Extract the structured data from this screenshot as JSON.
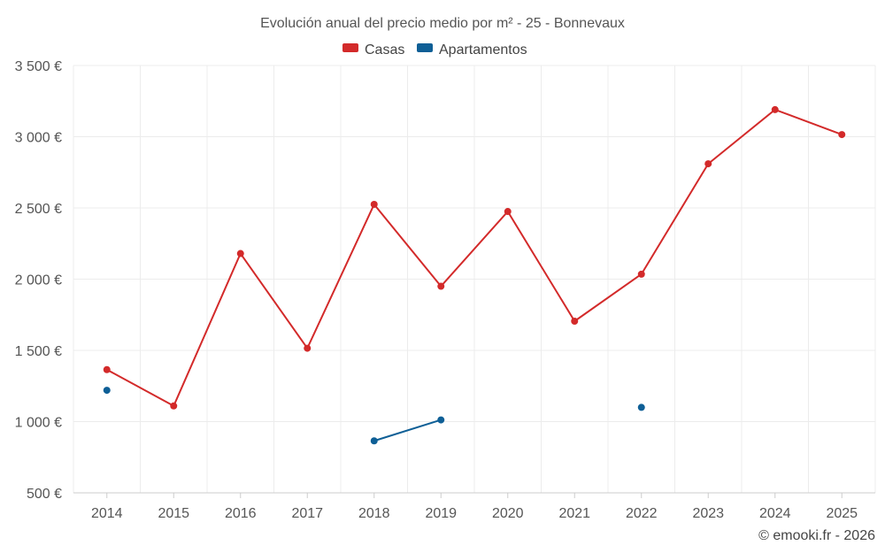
{
  "chart_data": {
    "type": "line",
    "title": "Evolución anual del precio medio por m² - 25 - Bonnevaux",
    "categories": [
      "2014",
      "2015",
      "2016",
      "2017",
      "2018",
      "2019",
      "2020",
      "2021",
      "2022",
      "2023",
      "2024",
      "2025"
    ],
    "series": [
      {
        "name": "Casas",
        "color": "#d32a2a",
        "values": [
          1365,
          1110,
          2180,
          1515,
          2525,
          1950,
          2475,
          1705,
          2035,
          2810,
          3190,
          3015
        ]
      },
      {
        "name": "Apartamentos",
        "color": "#0e5f96",
        "values": [
          1220,
          null,
          null,
          null,
          865,
          1012,
          null,
          null,
          1100,
          null,
          null,
          null
        ]
      }
    ],
    "ylim": [
      500,
      3500
    ],
    "yticks": [
      500,
      1000,
      1500,
      2000,
      2500,
      3000,
      3500
    ],
    "ytick_labels": [
      "500 €",
      "1 000 €",
      "1 500 €",
      "2 000 €",
      "2 500 €",
      "3 000 €",
      "3 500 €"
    ],
    "legend_position": "top-center",
    "grid": true
  },
  "credit": "© emooki.fr - 2026"
}
